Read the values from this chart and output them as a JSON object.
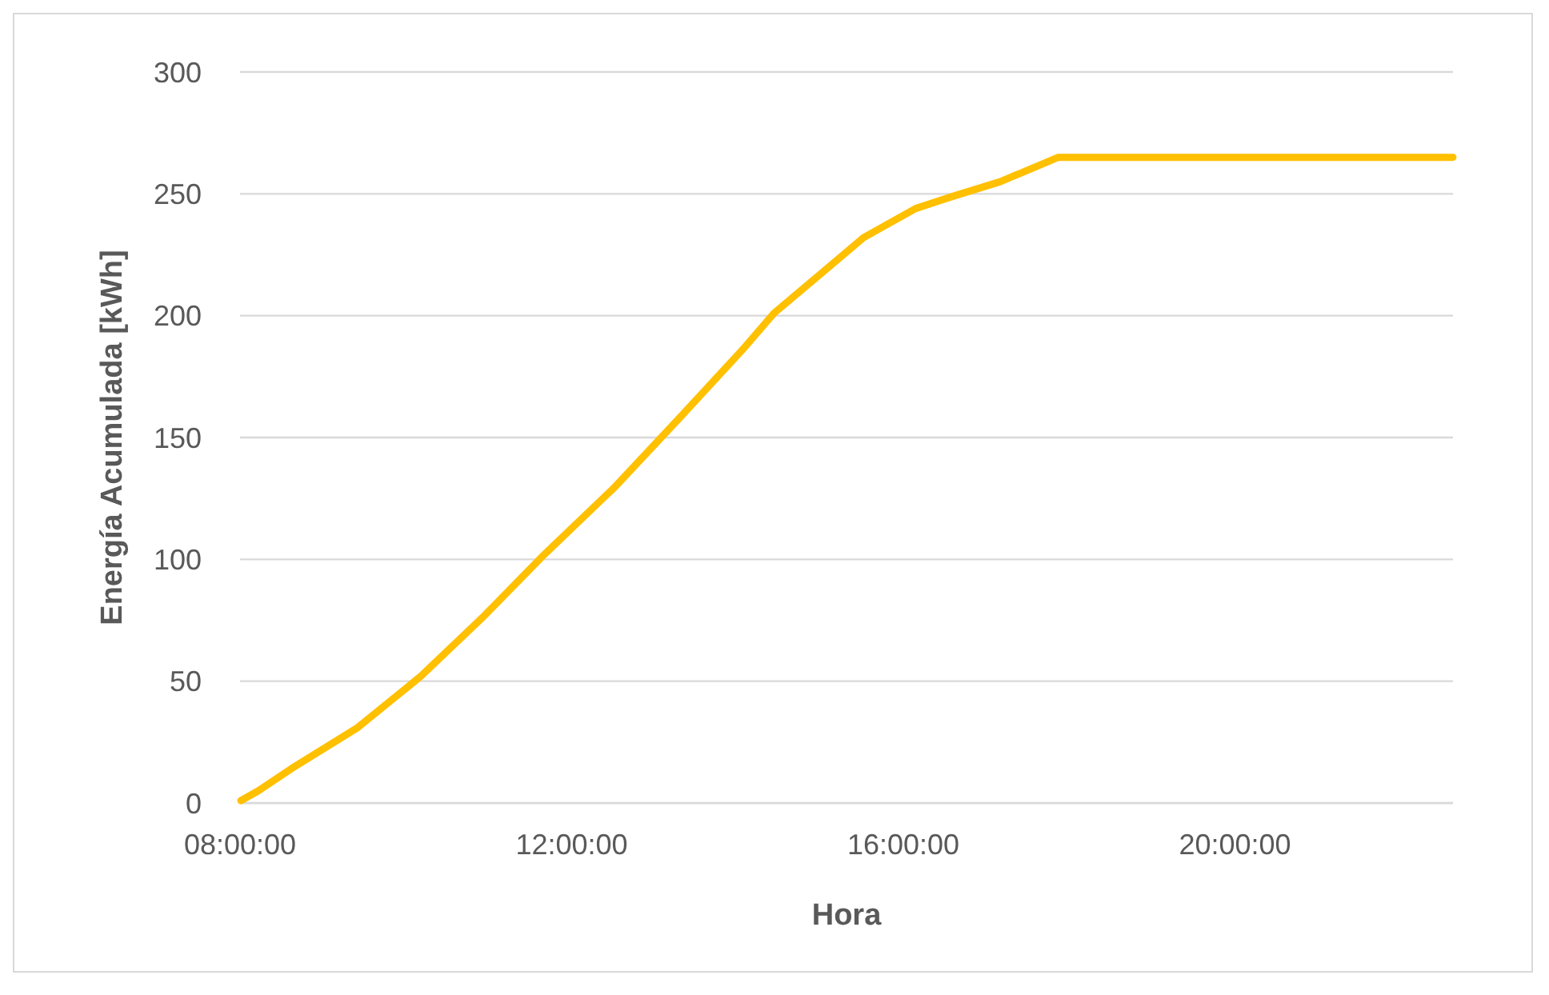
{
  "chart_data": {
    "type": "line",
    "xlabel": "Hora",
    "ylabel": "Energía Acumulada [kWh]",
    "x": [
      8.01,
      8.22,
      8.66,
      9.42,
      10.18,
      10.95,
      11.64,
      12.53,
      13.3,
      14.06,
      14.44,
      15.52,
      16.15,
      16.6,
      17.17,
      17.87,
      22.63
    ],
    "series": [
      {
        "color": "#ffc000",
        "values": [
          1,
          5,
          15,
          31,
          52,
          77,
          101,
          130,
          158,
          186,
          201,
          232,
          244,
          249,
          255,
          265,
          265
        ]
      }
    ],
    "xlim": [
      8,
      22.63
    ],
    "ylim": [
      0,
      300
    ],
    "xticks": [
      {
        "value": 8,
        "label": "08:00:00"
      },
      {
        "value": 12,
        "label": "12:00:00"
      },
      {
        "value": 16,
        "label": "16:00:00"
      },
      {
        "value": 20,
        "label": "20:00:00"
      }
    ],
    "yticks": [
      0,
      50,
      100,
      150,
      200,
      250,
      300
    ],
    "grid": "y",
    "marker": "none",
    "line_style": "solid"
  }
}
